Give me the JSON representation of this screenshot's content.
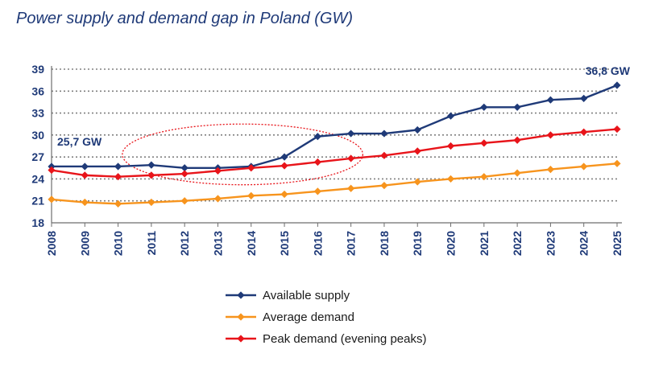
{
  "title": "Power supply and demand gap in Poland (GW)",
  "colors": {
    "supply": "#1f3a78",
    "average": "#f7941d",
    "peak": "#e8141a",
    "grid": "#808080",
    "highlight": "#e8141a"
  },
  "chart_data": {
    "type": "line",
    "title": "Power supply and demand gap in Poland (GW)",
    "xlabel": "",
    "ylabel": "",
    "categories": [
      "2008",
      "2009",
      "2010",
      "2011",
      "2012",
      "2013",
      "2014",
      "2015",
      "2016",
      "2017",
      "2018",
      "2019",
      "2020",
      "2021",
      "2022",
      "2023",
      "2024",
      "2025"
    ],
    "yticks": [
      18,
      21,
      24,
      27,
      30,
      33,
      36,
      39
    ],
    "ylim": [
      18,
      39
    ],
    "grid": "horizontal dotted",
    "legend": "bottom-center",
    "series": [
      {
        "name": "Available supply",
        "color": "#1f3a78",
        "values": [
          25.7,
          25.7,
          25.7,
          25.9,
          25.5,
          25.5,
          25.7,
          27.0,
          29.8,
          30.2,
          30.2,
          30.7,
          32.6,
          33.8,
          33.8,
          34.8,
          35.0,
          36.8
        ]
      },
      {
        "name": "Average demand",
        "color": "#f7941d",
        "values": [
          21.2,
          20.8,
          20.6,
          20.8,
          21.0,
          21.3,
          21.7,
          21.9,
          22.3,
          22.7,
          23.1,
          23.6,
          24.0,
          24.3,
          24.8,
          25.3,
          25.7,
          26.1
        ]
      },
      {
        "name": "Peak demand (evening peaks)",
        "color": "#e8141a",
        "values": [
          25.2,
          24.5,
          24.3,
          24.5,
          24.7,
          25.1,
          25.5,
          25.8,
          26.3,
          26.8,
          27.2,
          27.8,
          28.5,
          28.9,
          29.3,
          30.0,
          30.4,
          30.8
        ]
      }
    ],
    "annotations": [
      {
        "text": "25,7 GW",
        "series": 0,
        "category": "2008"
      },
      {
        "text": "36,8 GW",
        "series": 0,
        "category": "2025"
      }
    ],
    "highlight": {
      "shape": "dotted ellipse",
      "x_from": "2011",
      "x_to": "2016",
      "y_from": 23.2,
      "y_to": 31.5
    }
  }
}
